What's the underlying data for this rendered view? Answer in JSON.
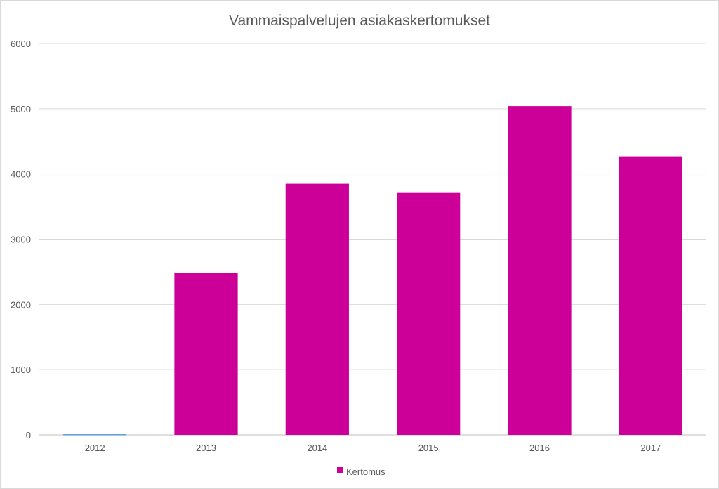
{
  "chart_data": {
    "type": "bar",
    "title": "Vammaispalvelujen  asiakaskertomukset",
    "xlabel": "",
    "ylabel": "",
    "categories": [
      "2012",
      "2013",
      "2014",
      "2015",
      "2016",
      "2017"
    ],
    "series": [
      {
        "name": "Kertomus",
        "color": "#cc0099",
        "values": [
          10,
          2480,
          3850,
          3720,
          5040,
          4270
        ]
      }
    ],
    "first_bar_color": "#5b9bd5",
    "ylim": [
      0,
      6000
    ],
    "yticks": [
      0,
      1000,
      2000,
      3000,
      4000,
      5000,
      6000
    ],
    "grid": true,
    "legend_position": "bottom"
  }
}
